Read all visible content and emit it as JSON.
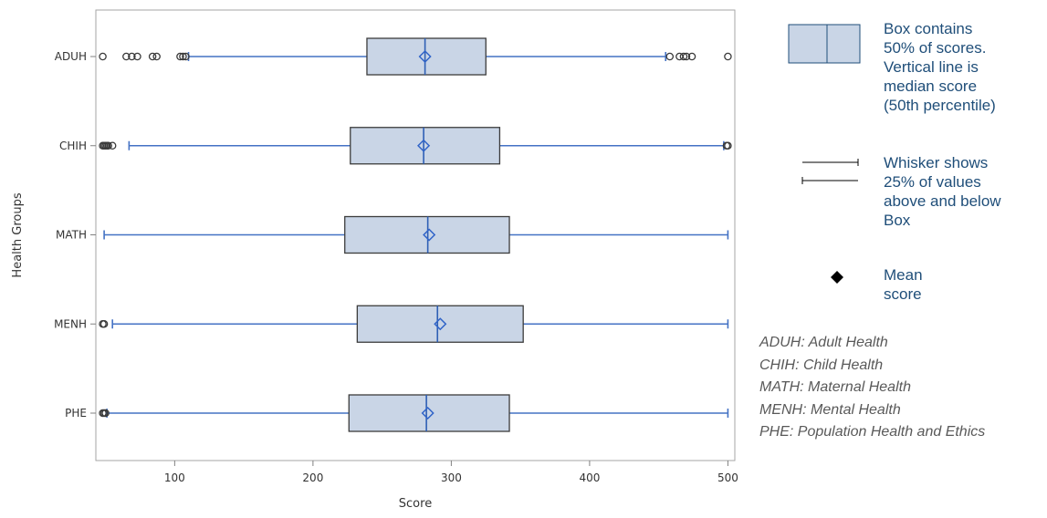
{
  "chart_data": {
    "type": "boxplot",
    "orientation": "horizontal",
    "xlabel": "Score",
    "ylabel": "Health Groups",
    "xlim": [
      43,
      505
    ],
    "xticks": [
      100,
      200,
      300,
      400,
      500
    ],
    "grid": false,
    "colors": {
      "box_fill": "#c9d5e6",
      "box_stroke": "#3c3c3c",
      "whisker": "#4472c4",
      "median": "#2e5fb5",
      "mean_marker": "#2f63c8",
      "outlier": "#3a3a3a"
    },
    "categories": [
      "ADUH",
      "CHIH",
      "MATH",
      "MENH",
      "PHE"
    ],
    "series": [
      {
        "category": "ADUH",
        "whisker_low": 110,
        "q1": 239,
        "median": 281,
        "q3": 325,
        "whisker_high": 455,
        "mean": 281,
        "outliers": [
          48,
          65,
          69,
          73,
          84,
          87,
          104,
          106,
          108,
          458,
          465,
          468,
          470,
          474,
          500
        ]
      },
      {
        "category": "CHIH",
        "whisker_low": 67,
        "q1": 227,
        "median": 280,
        "q3": 335,
        "whisker_high": 497,
        "mean": 280,
        "outliers": [
          48,
          49,
          50,
          51,
          52,
          55,
          499,
          500
        ]
      },
      {
        "category": "MATH",
        "whisker_low": 49,
        "q1": 223,
        "median": 283,
        "q3": 342,
        "whisker_high": 500,
        "mean": 284,
        "outliers": []
      },
      {
        "category": "MENH",
        "whisker_low": 55,
        "q1": 232,
        "median": 290,
        "q3": 352,
        "whisker_high": 500,
        "mean": 292,
        "outliers": [
          48,
          49
        ]
      },
      {
        "category": "PHE",
        "whisker_low": 51,
        "q1": 226,
        "median": 282,
        "q3": 342,
        "whisker_high": 500,
        "mean": 283,
        "outliers": [
          48,
          49,
          50
        ]
      }
    ]
  },
  "legend": {
    "box_text": "Box contains\n50% of scores.\nVertical line is\nmedian score\n(50th percentile)",
    "whisker_text": "Whisker shows\n25% of values\nabove and below\nBox",
    "mean_text": "Mean\nscore",
    "mean_icon": "diamond-icon",
    "text_color": "#1f4e79"
  },
  "abbreviations": [
    "ADUH: Adult Health",
    "CHIH: Child Health",
    "MATH: Maternal Health",
    "MENH: Mental Health",
    "PHE: Population Health and Ethics"
  ]
}
